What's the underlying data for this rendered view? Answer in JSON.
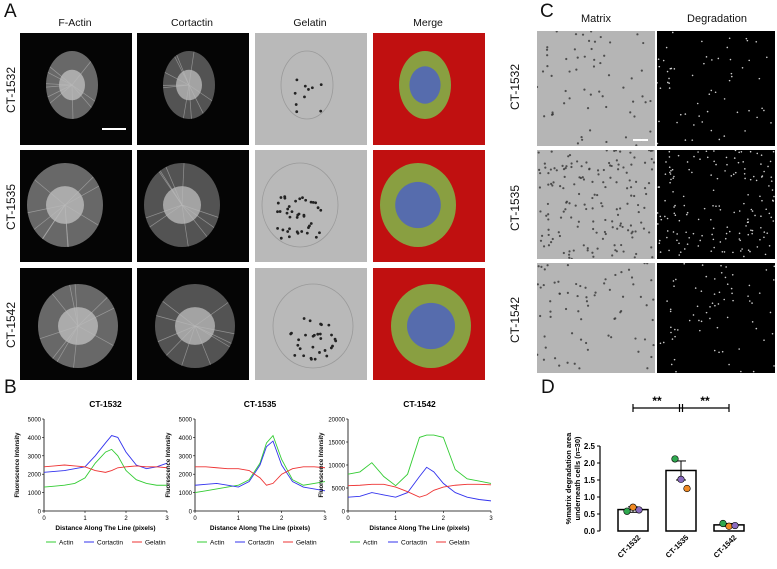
{
  "panels": {
    "A": "A",
    "B": "B",
    "C": "C",
    "D": "D"
  },
  "panelA": {
    "columns": [
      "F-Actin",
      "Cortactin",
      "Gelatin",
      "Merge"
    ],
    "rows": [
      "CT-1532",
      "CT-1535",
      "CT-1542"
    ]
  },
  "panelC": {
    "columns": [
      "Matrix",
      "Degradation"
    ],
    "rows": [
      "CT-1532",
      "CT-1535",
      "CT-1542"
    ]
  },
  "colors": {
    "actin": "#33cc33",
    "cortactin": "#3333ee",
    "gelatin": "#ee3333",
    "bar_green": "#2fa84f",
    "bar_orange": "#f08a24",
    "bar_purple": "#8a6bbf"
  },
  "chart_data": [
    {
      "type": "line",
      "title": "CT-1532",
      "xlabel": "Distance Along The Line (pixels)",
      "ylabel": "Fluorescence Intensity",
      "xlim": [
        0,
        3
      ],
      "ylim": [
        0,
        5000
      ],
      "xticks": [
        "0",
        "1",
        "2",
        "3"
      ],
      "yticks": [
        "0",
        "1000",
        "2000",
        "3000",
        "4000",
        "5000"
      ],
      "legend": [
        "Actin",
        "Cortactin",
        "Gelatin"
      ],
      "x": [
        0,
        0.25,
        0.5,
        0.75,
        1.0,
        1.25,
        1.5,
        1.65,
        1.8,
        2.0,
        2.25,
        2.5,
        2.75,
        3.0
      ],
      "series": [
        {
          "name": "Actin",
          "values": [
            1300,
            1350,
            1400,
            1500,
            1800,
            2600,
            3200,
            3350,
            3000,
            2200,
            1700,
            1500,
            1400,
            1400
          ]
        },
        {
          "name": "Cortactin",
          "values": [
            2100,
            2150,
            2200,
            2300,
            2400,
            3000,
            3700,
            4100,
            4000,
            3200,
            2500,
            2300,
            2400,
            2600
          ]
        },
        {
          "name": "Gelatin",
          "values": [
            2400,
            2450,
            2500,
            2450,
            2400,
            2200,
            2100,
            2200,
            2350,
            2400,
            2450,
            2400,
            2400,
            2350
          ]
        }
      ]
    },
    {
      "type": "line",
      "title": "CT-1535",
      "xlabel": "Distance Along The Line (pixels)",
      "ylabel": "Fluorescence Intensity",
      "xlim": [
        0,
        3
      ],
      "ylim": [
        0,
        5000
      ],
      "xticks": [
        "0",
        "1",
        "2",
        "3"
      ],
      "yticks": [
        "0",
        "1000",
        "2000",
        "3000",
        "4000",
        "5000"
      ],
      "legend": [
        "Actin",
        "Cortactin",
        "Gelatin"
      ],
      "x": [
        0,
        0.25,
        0.5,
        0.75,
        1.0,
        1.25,
        1.5,
        1.65,
        1.8,
        2.0,
        2.25,
        2.5,
        2.75,
        3.0
      ],
      "series": [
        {
          "name": "Actin",
          "values": [
            1000,
            1100,
            1200,
            1300,
            1400,
            1700,
            2600,
            3700,
            4100,
            2800,
            1700,
            1400,
            1500,
            1600
          ]
        },
        {
          "name": "Cortactin",
          "values": [
            1400,
            1450,
            1500,
            1400,
            1300,
            1600,
            2500,
            3500,
            3800,
            2500,
            1600,
            1300,
            1200,
            1100
          ]
        },
        {
          "name": "Gelatin",
          "values": [
            2400,
            2400,
            2350,
            2300,
            2300,
            2200,
            1800,
            1400,
            1500,
            2000,
            2300,
            2400,
            2400,
            2350
          ]
        }
      ]
    },
    {
      "type": "line",
      "title": "CT-1542",
      "xlabel": "Distance Along The Line (pixels)",
      "ylabel": "Fluorescence Intensity",
      "xlim": [
        0,
        3
      ],
      "ylim": [
        0,
        20000
      ],
      "xticks": [
        "0",
        "1",
        "2",
        "3"
      ],
      "yticks": [
        "0",
        "5000",
        "10000",
        "15000",
        "20000"
      ],
      "legend": [
        "Actin",
        "Cortactin",
        "Gelatin"
      ],
      "x": [
        0,
        0.25,
        0.5,
        0.75,
        1.0,
        1.25,
        1.5,
        1.65,
        1.8,
        2.0,
        2.25,
        2.5,
        2.75,
        3.0
      ],
      "series": [
        {
          "name": "Actin",
          "values": [
            8000,
            8500,
            10500,
            7500,
            5500,
            8000,
            16000,
            16500,
            16500,
            16000,
            9000,
            7000,
            6500,
            6000
          ]
        },
        {
          "name": "Cortactin",
          "values": [
            3000,
            3200,
            4000,
            3500,
            3000,
            4000,
            7500,
            9500,
            8500,
            6000,
            4000,
            3000,
            2500,
            2200
          ]
        },
        {
          "name": "Gelatin",
          "values": [
            5500,
            5600,
            5800,
            5800,
            5200,
            4200,
            3000,
            3500,
            4500,
            5200,
            5600,
            5800,
            5800,
            5700
          ]
        }
      ]
    },
    {
      "type": "bar",
      "categories": [
        "CT-1532",
        "CT-1535",
        "CT-1542"
      ],
      "values": [
        0.63,
        1.78,
        0.18
      ],
      "errors": [
        0.08,
        0.28,
        0.04
      ],
      "ylabel": "%matrix degradation area underneath cells (n=30)",
      "ylim": [
        0,
        2.5
      ],
      "yticks": [
        "0.0",
        "0.5",
        "1.0",
        "1.5",
        "2.0",
        "2.5"
      ],
      "points": [
        {
          "category": "CT-1532",
          "values": [
            0.58,
            0.7,
            0.62
          ],
          "colors": [
            "green",
            "orange",
            "purple"
          ]
        },
        {
          "category": "CT-1535",
          "values": [
            2.12,
            1.52,
            1.25
          ],
          "colors": [
            "green",
            "purple",
            "orange"
          ]
        },
        {
          "category": "CT-1542",
          "values": [
            0.22,
            0.14,
            0.16
          ],
          "colors": [
            "green",
            "orange",
            "purple"
          ]
        }
      ],
      "annotations": [
        "**",
        "**"
      ]
    }
  ]
}
